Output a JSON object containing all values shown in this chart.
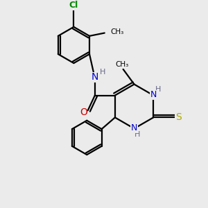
{
  "bg_color": "#ebebeb",
  "atom_colors": {
    "C": "#000000",
    "N": "#0000cc",
    "O": "#cc0000",
    "S": "#aaaa00",
    "Cl": "#008800",
    "H": "#666688"
  },
  "bond_color": "#000000",
  "line_width": 1.6
}
